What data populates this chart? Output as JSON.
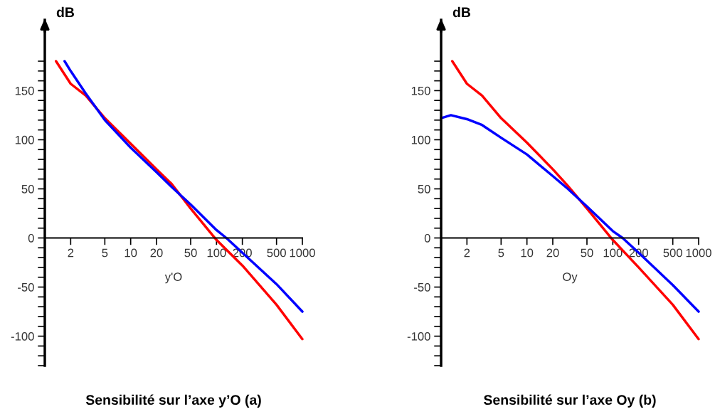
{
  "chart_data": [
    {
      "type": "line",
      "title": "Sensibilité sur l’axe y’O (a)",
      "xlabel": "y'O",
      "ylabel": "dB",
      "log": "x",
      "xlim": [
        1,
        1000
      ],
      "ylim": [
        -130,
        222
      ],
      "xticks": [
        2,
        5,
        10,
        20,
        50,
        100,
        200,
        500,
        1000
      ],
      "yticks": [
        {
          "value": -130,
          "label": null
        },
        {
          "value": -120,
          "label": null
        },
        {
          "value": -110,
          "label": null
        },
        -100,
        {
          "value": -90,
          "label": null
        },
        {
          "value": -80,
          "label": null
        },
        {
          "value": -70,
          "label": null
        },
        {
          "value": -60,
          "label": null
        },
        -50,
        {
          "value": -40,
          "label": null
        },
        {
          "value": -30,
          "label": null
        },
        {
          "value": -20,
          "label": null
        },
        {
          "value": -10,
          "label": null
        },
        0,
        {
          "value": 10,
          "label": null
        },
        {
          "value": 20,
          "label": null
        },
        {
          "value": 30,
          "label": null
        },
        {
          "value": 40,
          "label": null
        },
        50,
        {
          "value": 60,
          "label": null
        },
        {
          "value": 70,
          "label": null
        },
        {
          "value": 80,
          "label": null
        },
        {
          "value": 90,
          "label": null
        },
        100,
        {
          "value": 110,
          "label": null
        },
        {
          "value": 120,
          "label": null
        },
        {
          "value": 130,
          "label": null
        },
        {
          "value": 140,
          "label": null
        },
        150,
        {
          "value": 160,
          "label": null
        },
        {
          "value": 170,
          "label": null
        },
        {
          "value": 180,
          "label": null
        }
      ],
      "series": [
        {
          "color": "#ff0000",
          "x": [
            1.35,
            2,
            3,
            5,
            10,
            20,
            30,
            50,
            100,
            200,
            500,
            1000
          ],
          "values": [
            180,
            157,
            145,
            122,
            96,
            70,
            55,
            30,
            -2,
            -28,
            -68,
            -103
          ]
        },
        {
          "color": "#0000ff",
          "x": [
            1.7,
            2,
            3,
            5,
            10,
            20,
            30,
            50,
            100,
            130,
            200,
            500,
            1000
          ],
          "values": [
            180,
            170,
            147,
            120,
            92,
            67,
            52,
            34,
            8,
            0,
            -15,
            -47,
            -75
          ]
        }
      ]
    },
    {
      "type": "line",
      "title": "Sensibilité sur l’axe Oy (b)",
      "xlabel": "Oy",
      "ylabel": "dB",
      "log": "x",
      "xlim": [
        1,
        1000
      ],
      "ylim": [
        -130,
        222
      ],
      "xticks": [
        2,
        5,
        10,
        20,
        50,
        100,
        200,
        500,
        1000
      ],
      "yticks": [
        {
          "value": -130,
          "label": null
        },
        {
          "value": -120,
          "label": null
        },
        {
          "value": -110,
          "label": null
        },
        -100,
        {
          "value": -90,
          "label": null
        },
        {
          "value": -80,
          "label": null
        },
        {
          "value": -70,
          "label": null
        },
        {
          "value": -60,
          "label": null
        },
        -50,
        {
          "value": -40,
          "label": null
        },
        {
          "value": -30,
          "label": null
        },
        {
          "value": -20,
          "label": null
        },
        {
          "value": -10,
          "label": null
        },
        0,
        {
          "value": 10,
          "label": null
        },
        {
          "value": 20,
          "label": null
        },
        {
          "value": 30,
          "label": null
        },
        {
          "value": 40,
          "label": null
        },
        50,
        {
          "value": 60,
          "label": null
        },
        {
          "value": 70,
          "label": null
        },
        {
          "value": 80,
          "label": null
        },
        {
          "value": 90,
          "label": null
        },
        100,
        {
          "value": 110,
          "label": null
        },
        {
          "value": 120,
          "label": null
        },
        {
          "value": 130,
          "label": null
        },
        {
          "value": 140,
          "label": null
        },
        150,
        {
          "value": 160,
          "label": null
        },
        {
          "value": 170,
          "label": null
        },
        {
          "value": 180,
          "label": null
        }
      ],
      "series": [
        {
          "color": "#ff0000",
          "x": [
            1.35,
            2,
            3,
            5,
            10,
            20,
            30,
            50,
            100,
            200,
            500,
            1000
          ],
          "values": [
            180,
            157,
            145,
            122,
            97,
            70,
            53,
            30,
            -2,
            -30,
            -68,
            -103
          ]
        },
        {
          "color": "#0000ff",
          "x": [
            1,
            1.3,
            2,
            3,
            5,
            10,
            20,
            30,
            50,
            100,
            130,
            200,
            500,
            1000
          ],
          "values": [
            122,
            125,
            121,
            115,
            102,
            85,
            63,
            50,
            32,
            7,
            0,
            -15,
            -48,
            -75
          ]
        }
      ]
    }
  ]
}
